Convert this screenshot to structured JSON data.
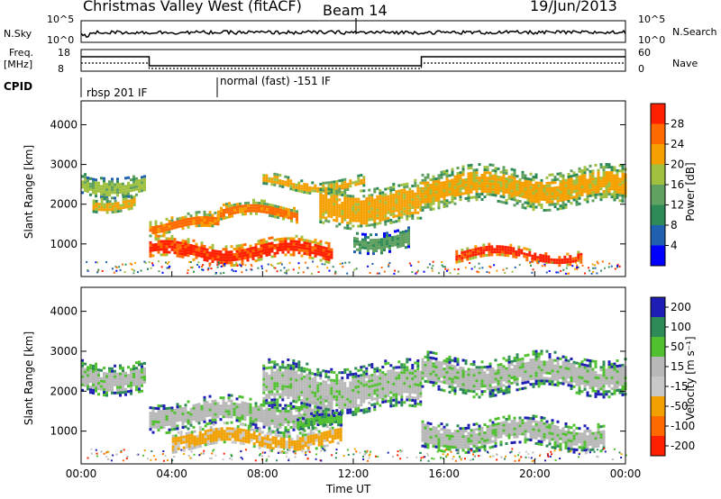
{
  "header": {
    "station": "Christmas Valley West (fitACF)",
    "beam": "Beam 14",
    "date": "19/Jun/2013"
  },
  "sky_panel": {
    "left_label": "N.Sky",
    "right_label": "N.Search",
    "left_ticks": [
      "10^5",
      "10^0"
    ],
    "right_ticks": [
      "10^5",
      "10^0"
    ]
  },
  "freq_panel": {
    "left_label_1": "Freq.",
    "left_label_2": "[MHz]",
    "right_label": "Nave",
    "left_ticks": [
      "18",
      "8"
    ],
    "right_ticks": [
      "60",
      "0"
    ]
  },
  "cpid_panel": {
    "label": "CPID",
    "segments": [
      "rbsp 201 IF",
      "normal (fast) -151 IF"
    ],
    "change_hour": 6
  },
  "chart_data": [
    {
      "type": "heatmap",
      "name": "power",
      "ylabel": "Slant Range [km]",
      "yticks": [
        1000,
        2000,
        3000,
        4000
      ],
      "ylim": [
        180,
        4600
      ],
      "xlim": [
        0,
        24
      ],
      "colorbar": {
        "label": "Power [dB]",
        "ticks": [
          "4",
          "8",
          "12",
          "16",
          "20",
          "24",
          "28"
        ],
        "colors": [
          "#0000ff",
          "#2060b0",
          "#2e8b57",
          "#60a060",
          "#a0c040",
          "#f5a000",
          "#ff6a00",
          "#ff2000"
        ]
      },
      "bands": [
        {
          "t0": 0.0,
          "t1": 2.8,
          "r": [
            2300,
            2800
          ],
          "level": 4
        },
        {
          "t0": 0.5,
          "t1": 2.4,
          "r": [
            1900,
            2300
          ],
          "level": 5
        },
        {
          "t0": 3.0,
          "t1": 6.0,
          "r": [
            1300,
            1700
          ],
          "level": 6
        },
        {
          "t0": 6.0,
          "t1": 9.5,
          "r": [
            1600,
            2000
          ],
          "level": 6
        },
        {
          "t0": 3.0,
          "t1": 11.0,
          "r": [
            600,
            1100
          ],
          "level": 7
        },
        {
          "t0": 8.0,
          "t1": 12.5,
          "r": [
            2400,
            2700
          ],
          "level": 5
        },
        {
          "t0": 10.5,
          "t1": 15.0,
          "r": [
            1500,
            2500
          ],
          "level": 5
        },
        {
          "t0": 12.0,
          "t1": 14.5,
          "r": [
            900,
            1400
          ],
          "level": 3
        },
        {
          "t0": 15.0,
          "t1": 24.0,
          "r": [
            2000,
            2900
          ],
          "level": 5
        },
        {
          "t0": 16.5,
          "t1": 22.0,
          "r": [
            600,
            900
          ],
          "level": 7
        }
      ]
    },
    {
      "type": "heatmap",
      "name": "velocity",
      "ylabel": "Slant Range [km]",
      "yticks": [
        1000,
        2000,
        3000,
        4000
      ],
      "ylim": [
        180,
        4600
      ],
      "xlim": [
        0,
        24
      ],
      "colorbar": {
        "label": "Velocity [m s⁻¹]",
        "ticks": [
          "200",
          "100",
          "50",
          "15",
          "-15",
          "-50",
          "-100",
          "-200"
        ],
        "colors": [
          "#1e1eb4",
          "#2e8b57",
          "#50c030",
          "#b8b8b8",
          "#c8c8c8",
          "#f0a000",
          "#ff6a00",
          "#ff2000"
        ]
      },
      "bands": [
        {
          "t0": 0.0,
          "t1": 2.8,
          "r": [
            2000,
            2800
          ],
          "level": 3
        },
        {
          "t0": 3.0,
          "t1": 11.0,
          "r": [
            1100,
            1800
          ],
          "level": 3
        },
        {
          "t0": 4.0,
          "t1": 11.5,
          "r": [
            600,
            1100
          ],
          "level": 5
        },
        {
          "t0": 9.5,
          "t1": 11.5,
          "r": [
            1000,
            1400
          ],
          "level": 2
        },
        {
          "t0": 8.0,
          "t1": 15.0,
          "r": [
            1500,
            2700
          ],
          "level": 3
        },
        {
          "t0": 15.0,
          "t1": 24.0,
          "r": [
            2000,
            2900
          ],
          "level": 3
        },
        {
          "t0": 15.0,
          "t1": 23.0,
          "r": [
            600,
            1300
          ],
          "level": 3
        }
      ]
    }
  ],
  "xaxis": {
    "ticks": [
      "00:00",
      "04:00",
      "08:00",
      "12:00",
      "16:00",
      "20:00",
      "00:00"
    ],
    "label": "Time UT"
  }
}
